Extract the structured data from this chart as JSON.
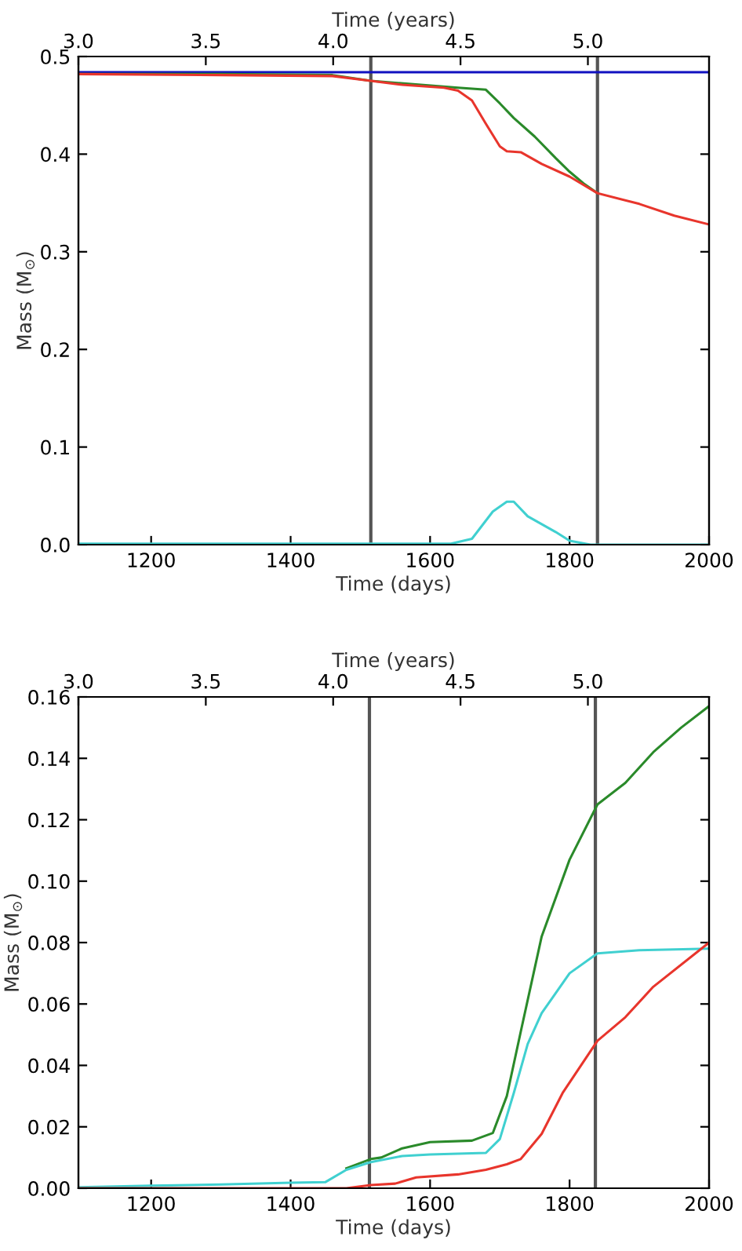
{
  "chart_data": [
    {
      "type": "line",
      "xlabel": "Time (days)",
      "ylabel": "Mass (M$_{⊙}$)",
      "x2label": "Time (years)",
      "xlim": [
        1095.75,
        2000
      ],
      "xticks": [
        1200,
        1400,
        1600,
        1800,
        2000
      ],
      "ylim": [
        0,
        0.5
      ],
      "yticks": [
        {
          "value": 0,
          "label": "0.0"
        },
        0.1,
        0.2,
        0.3,
        0.4,
        0.5
      ],
      "x2lim": [
        3.0,
        5.4757
      ],
      "x2ticks": [
        {
          "value": 3,
          "label": "3.0"
        },
        {
          "value": 3.5,
          "label": "3.5"
        },
        {
          "value": 4,
          "label": "4.0"
        },
        {
          "value": 4.5,
          "label": "4.5"
        },
        {
          "value": 5,
          "label": "5.0"
        }
      ],
      "grid": false,
      "legend": false,
      "ref_lines": [
        {
          "axis": "x",
          "value": 1515,
          "color": "#555555"
        },
        {
          "axis": "x",
          "value": 1840,
          "color": "#555555"
        }
      ],
      "series": [
        {
          "color": "#1010c0",
          "x": [
            1095.75,
            2000
          ],
          "values": [
            0.484,
            0.484
          ]
        },
        {
          "color": "#2a8a2a",
          "x": [
            1095.75,
            1300,
            1460,
            1515,
            1640,
            1680,
            1700,
            1720,
            1750,
            1780,
            1800,
            1820,
            1840
          ],
          "values": [
            0.482,
            0.482,
            0.481,
            0.475,
            0.468,
            0.466,
            0.452,
            0.437,
            0.418,
            0.396,
            0.382,
            0.37,
            0.36
          ]
        },
        {
          "color": "#e8352c",
          "x": [
            1095.75,
            1300,
            1460,
            1515,
            1560,
            1600,
            1620,
            1640,
            1660,
            1680,
            1700,
            1710,
            1730,
            1760,
            1800,
            1840,
            1900,
            1950,
            2000
          ],
          "values": [
            0.482,
            0.481,
            0.48,
            0.475,
            0.471,
            0.469,
            0.468,
            0.465,
            0.455,
            0.431,
            0.408,
            0.403,
            0.402,
            0.39,
            0.377,
            0.36,
            0.349,
            0.337,
            0.328
          ]
        },
        {
          "color": "#40d0d0",
          "x": [
            1095.75,
            1400,
            1630,
            1660,
            1690,
            1710,
            1720,
            1740,
            1760,
            1780,
            1800,
            1830,
            2000
          ],
          "values": [
            0.001,
            0.001,
            0.001,
            0.006,
            0.034,
            0.044,
            0.044,
            0.029,
            0.021,
            0.013,
            0.004,
            0.0,
            0.0
          ]
        }
      ]
    },
    {
      "type": "line",
      "xlabel": "Time (days)",
      "ylabel": "Mass (M$_{⊙}$)",
      "x2label": "Time (years)",
      "xlim": [
        1095.75,
        2000
      ],
      "xticks": [
        1200,
        1400,
        1600,
        1800,
        2000
      ],
      "ylim": [
        0,
        0.16
      ],
      "yticks": [
        {
          "value": 0,
          "label": "0.00"
        },
        {
          "value": 0.02,
          "label": "0.02"
        },
        {
          "value": 0.04,
          "label": "0.04"
        },
        {
          "value": 0.06,
          "label": "0.06"
        },
        {
          "value": 0.08,
          "label": "0.08"
        },
        {
          "value": 0.1,
          "label": "0.10"
        },
        {
          "value": 0.12,
          "label": "0.12"
        },
        {
          "value": 0.14,
          "label": "0.14"
        },
        {
          "value": 0.16,
          "label": "0.16"
        }
      ],
      "x2lim": [
        3.0,
        5.4757
      ],
      "x2ticks": [
        {
          "value": 3,
          "label": "3.0"
        },
        3.5,
        {
          "value": 4,
          "label": "4.0"
        },
        4.5,
        {
          "value": 5,
          "label": "5.0"
        }
      ],
      "grid": false,
      "legend": false,
      "ref_lines": [
        {
          "axis": "x",
          "value": 1513,
          "color": "#555555"
        },
        {
          "axis": "x",
          "value": 1837,
          "color": "#555555"
        }
      ],
      "series": [
        {
          "color": "#2a8a2a",
          "x": [
            1480,
            1515,
            1530,
            1560,
            1600,
            1660,
            1690,
            1710,
            1730,
            1760,
            1800,
            1840,
            1880,
            1920,
            1960,
            2000
          ],
          "values": [
            0.0065,
            0.0095,
            0.01,
            0.013,
            0.015,
            0.0155,
            0.018,
            0.03,
            0.051,
            0.082,
            0.107,
            0.125,
            0.132,
            0.142,
            0.15,
            0.157
          ]
        },
        {
          "color": "#40d0d0",
          "x": [
            1095.75,
            1200,
            1300,
            1400,
            1450,
            1480,
            1515,
            1560,
            1600,
            1680,
            1700,
            1720,
            1740,
            1760,
            1800,
            1840,
            1900,
            2000
          ],
          "values": [
            0.0003,
            0.0008,
            0.0012,
            0.0018,
            0.002,
            0.006,
            0.0085,
            0.0105,
            0.011,
            0.0115,
            0.016,
            0.031,
            0.047,
            0.057,
            0.07,
            0.0765,
            0.0775,
            0.078
          ]
        },
        {
          "color": "#e8352c",
          "x": [
            1095.75,
            1480,
            1515,
            1550,
            1580,
            1640,
            1680,
            1710,
            1730,
            1760,
            1790,
            1840,
            1880,
            1920,
            2000
          ],
          "values": [
            0.0,
            0.0,
            0.001,
            0.0015,
            0.0035,
            0.0045,
            0.006,
            0.0078,
            0.0095,
            0.0177,
            0.031,
            0.048,
            0.0557,
            0.0656,
            0.08
          ]
        }
      ]
    }
  ]
}
